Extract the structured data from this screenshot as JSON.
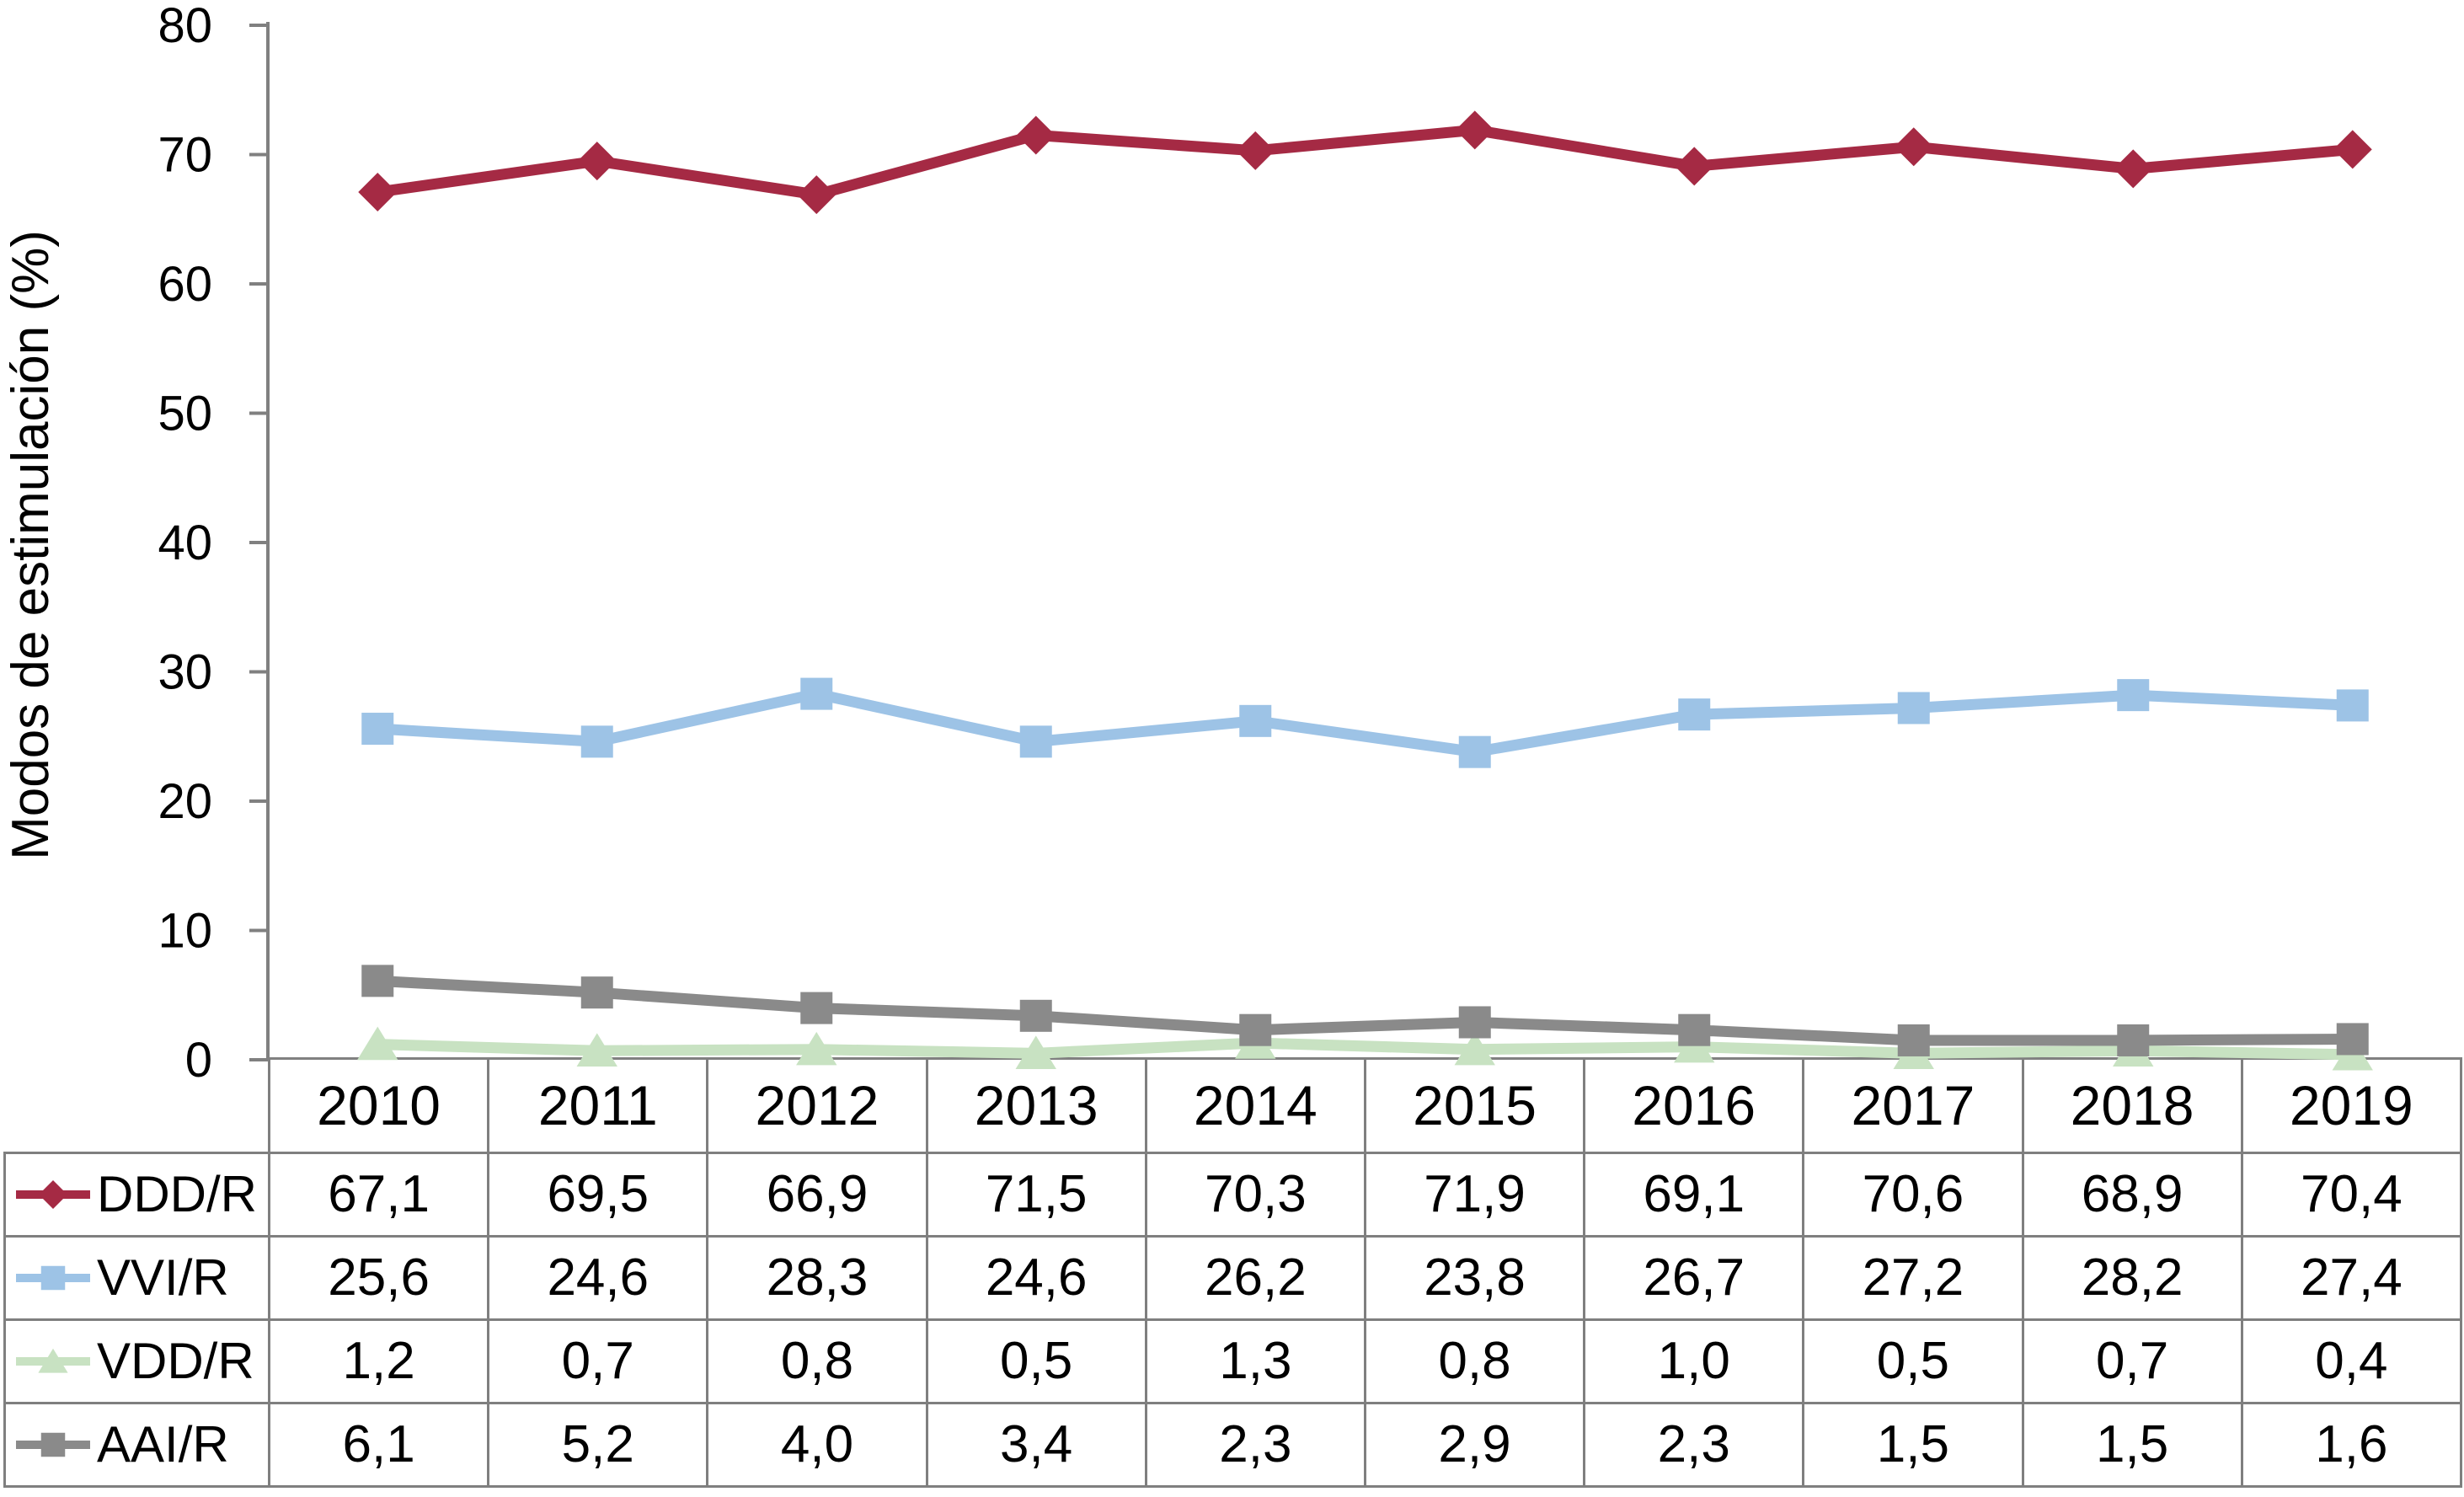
{
  "y_axis": {
    "title": "Modos de estimulación (%)",
    "tick_labels": [
      "0",
      "10",
      "20",
      "30",
      "40",
      "50",
      "60",
      "70",
      "80"
    ]
  },
  "chart_data": {
    "type": "line",
    "title": "",
    "xlabel": "",
    "ylabel": "Modos de estimulación (%)",
    "ylim": [
      0,
      80
    ],
    "ytick_step": 10,
    "grid": false,
    "legend_position": "table-rows-left",
    "categories": [
      "2010",
      "2011",
      "2012",
      "2013",
      "2014",
      "2015",
      "2016",
      "2017",
      "2018",
      "2019"
    ],
    "series": [
      {
        "name": "DDD/R",
        "color": "#A52A44",
        "marker": "diamond",
        "values": [
          67.1,
          69.5,
          66.9,
          71.5,
          70.3,
          71.9,
          69.1,
          70.6,
          68.9,
          70.4
        ]
      },
      {
        "name": "VVI/R",
        "color": "#9DC3E6",
        "marker": "square",
        "values": [
          25.6,
          24.6,
          28.3,
          24.6,
          26.2,
          23.8,
          26.7,
          27.2,
          28.2,
          27.4
        ]
      },
      {
        "name": "VDD/R",
        "color": "#C8E2C2",
        "marker": "triangle",
        "values": [
          1.2,
          0.7,
          0.8,
          0.5,
          1.3,
          0.8,
          1.0,
          0.5,
          0.7,
          0.4
        ]
      },
      {
        "name": "AAI/R",
        "color": "#8A8A8A",
        "marker": "square",
        "values": [
          6.1,
          5.2,
          4.0,
          3.4,
          2.3,
          2.9,
          2.3,
          1.5,
          1.5,
          1.6
        ]
      }
    ]
  },
  "table": {
    "corner_label": "",
    "columns": [
      "2010",
      "2011",
      "2012",
      "2013",
      "2014",
      "2015",
      "2016",
      "2017",
      "2018",
      "2019"
    ],
    "rows": [
      {
        "label": "DDD/R",
        "values": [
          "67,1",
          "69,5",
          "66,9",
          "71,5",
          "70,3",
          "71,9",
          "69,1",
          "70,6",
          "68,9",
          "70,4"
        ]
      },
      {
        "label": "VVI/R",
        "values": [
          "25,6",
          "24,6",
          "28,3",
          "24,6",
          "26,2",
          "23,8",
          "26,7",
          "27,2",
          "28,2",
          "27,4"
        ]
      },
      {
        "label": "VDD/R",
        "values": [
          "1,2",
          "0,7",
          "0,8",
          "0,5",
          "1,3",
          "0,8",
          "1,0",
          "0,5",
          "0,7",
          "0,4"
        ]
      },
      {
        "label": "AAI/R",
        "values": [
          "6,1",
          "5,2",
          "4,0",
          "3,4",
          "2,3",
          "2,9",
          "2,3",
          "1,5",
          "1,5",
          "1,6"
        ]
      }
    ]
  },
  "colors": {
    "axis": "#808080",
    "table_border": "#7F7F7F",
    "text": "#000000"
  }
}
